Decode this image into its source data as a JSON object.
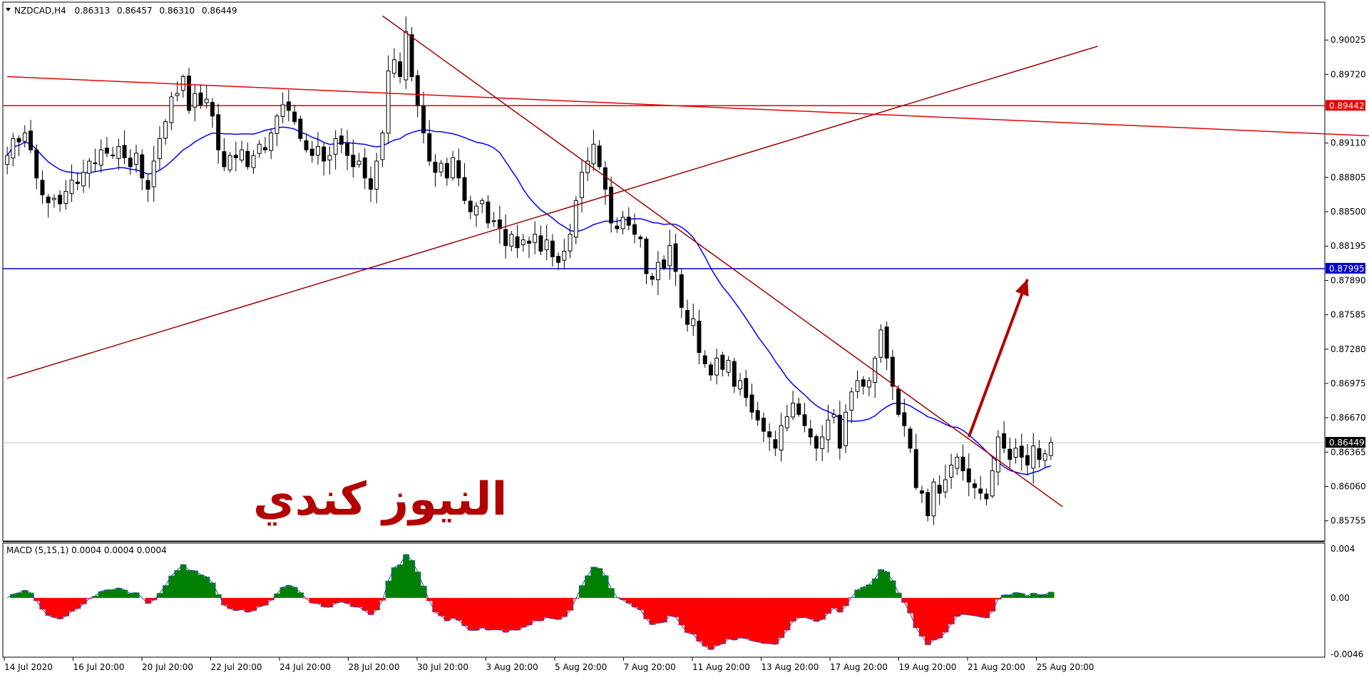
{
  "chart_data": [
    {
      "type": "candlestick",
      "symbol": "NZDCAD,H4",
      "ohlc_header": {
        "open": "0.86313",
        "high": "0.86457",
        "low": "0.86310",
        "close": "0.86449"
      },
      "y_ticks": [
        "0.90025",
        "0.89720",
        "0.89110",
        "0.88805",
        "0.88500",
        "0.88195",
        "0.87890",
        "0.87585",
        "0.87280",
        "0.86975",
        "0.86670",
        "0.86365",
        "0.86060",
        "0.85755"
      ],
      "x_ticks": [
        "14 Jul 2020",
        "16 Jul 20:00",
        "20 Jul 20:00",
        "22 Jul 20:00",
        "24 Jul 20:00",
        "28 Jul 20:00",
        "30 Jul 20:00",
        "3 Aug 20:00",
        "5 Aug 20:00",
        "7 Aug 20:00",
        "11 Aug 20:00",
        "13 Aug 20:00",
        "17 Aug 20:00",
        "19 Aug 20:00",
        "21 Aug 20:00",
        "25 Aug 20:00"
      ],
      "ylim": [
        0.8562,
        0.9033
      ],
      "price_tags": [
        {
          "value": "0.89442",
          "color": "#e60000"
        },
        {
          "value": "0.87995",
          "color": "#0000cc"
        },
        {
          "value": "0.86449",
          "color": "#000000"
        }
      ],
      "horizontal_lines": [
        {
          "price": 0.89442,
          "color": "#e60000"
        },
        {
          "price": 0.87995,
          "color": "#0000cc"
        },
        {
          "price": 0.86449,
          "color": "#c0c0c0"
        }
      ],
      "trend_lines": [
        {
          "from": [
            0,
            0.897
          ],
          "to": [
            252,
            0.8913
          ],
          "color": "#e60000"
        },
        {
          "from": [
            0,
            0.8702
          ],
          "to": [
            186,
            0.8997
          ],
          "color": "#a00000"
        },
        {
          "from": [
            64,
            0.9024
          ],
          "to": [
            180,
            0.8588
          ],
          "color": "#a00000"
        }
      ],
      "arrow": {
        "from": [
          164,
          0.865
        ],
        "to": [
          174,
          0.879
        ],
        "color": "#b00000"
      },
      "close": [
        0.89,
        0.8915,
        0.8912,
        0.892,
        0.8905,
        0.888,
        0.8865,
        0.8858,
        0.8862,
        0.8857,
        0.8868,
        0.8878,
        0.8875,
        0.8885,
        0.8895,
        0.8893,
        0.8905,
        0.8902,
        0.89,
        0.8908,
        0.8898,
        0.889,
        0.8902,
        0.888,
        0.887,
        0.8895,
        0.8915,
        0.893,
        0.8952,
        0.8955,
        0.897,
        0.894,
        0.8955,
        0.8945,
        0.895,
        0.8935,
        0.8905,
        0.889,
        0.89,
        0.8898,
        0.8905,
        0.889,
        0.89,
        0.891,
        0.8905,
        0.892,
        0.8935,
        0.8945,
        0.894,
        0.893,
        0.8915,
        0.8905,
        0.89,
        0.8908,
        0.8895,
        0.89,
        0.8915,
        0.891,
        0.89,
        0.889,
        0.8895,
        0.888,
        0.887,
        0.8895,
        0.892,
        0.8975,
        0.8985,
        0.897,
        0.901,
        0.897,
        0.8945,
        0.892,
        0.8895,
        0.8885,
        0.8893,
        0.888,
        0.8898,
        0.888,
        0.886,
        0.885,
        0.8855,
        0.886,
        0.884,
        0.8842,
        0.8835,
        0.882,
        0.883,
        0.8818,
        0.8825,
        0.8822,
        0.883,
        0.8815,
        0.8825,
        0.881,
        0.8805,
        0.8815,
        0.883,
        0.886,
        0.8885,
        0.8895,
        0.891,
        0.889,
        0.887,
        0.884,
        0.8835,
        0.8845,
        0.8838,
        0.883,
        0.8826,
        0.8795,
        0.879,
        0.8805,
        0.88,
        0.882,
        0.8797,
        0.8765,
        0.875,
        0.8755,
        0.8725,
        0.8715,
        0.8705,
        0.872,
        0.871,
        0.8718,
        0.8695,
        0.87,
        0.8685,
        0.8672,
        0.8665,
        0.8655,
        0.865,
        0.864,
        0.866,
        0.8668,
        0.868,
        0.867,
        0.866,
        0.865,
        0.864,
        0.865,
        0.8665,
        0.867,
        0.864,
        0.8672,
        0.869,
        0.87,
        0.8695,
        0.87,
        0.872,
        0.8745,
        0.872,
        0.8695,
        0.867,
        0.866,
        0.864,
        0.8605,
        0.86,
        0.858,
        0.861,
        0.86,
        0.8612,
        0.8625,
        0.8632,
        0.862,
        0.861,
        0.8605,
        0.86,
        0.8595,
        0.862,
        0.865,
        0.864,
        0.863,
        0.864,
        0.8632,
        0.8625,
        0.8642,
        0.863,
        0.8635,
        0.8645
      ],
      "ma_color": "#0000ff",
      "macd": {
        "label": "MACD (5,15,1) 0.0004 0.0004 0.0004",
        "ticks": [
          "0.004",
          "0.00",
          "-0.0046"
        ],
        "ylim": [
          -0.0046,
          0.004
        ],
        "pos_color": "#008000",
        "neg_color": "#ff0000"
      }
    }
  ],
  "watermark": {
    "text": "النيوز كندي",
    "color": "#b30000"
  }
}
